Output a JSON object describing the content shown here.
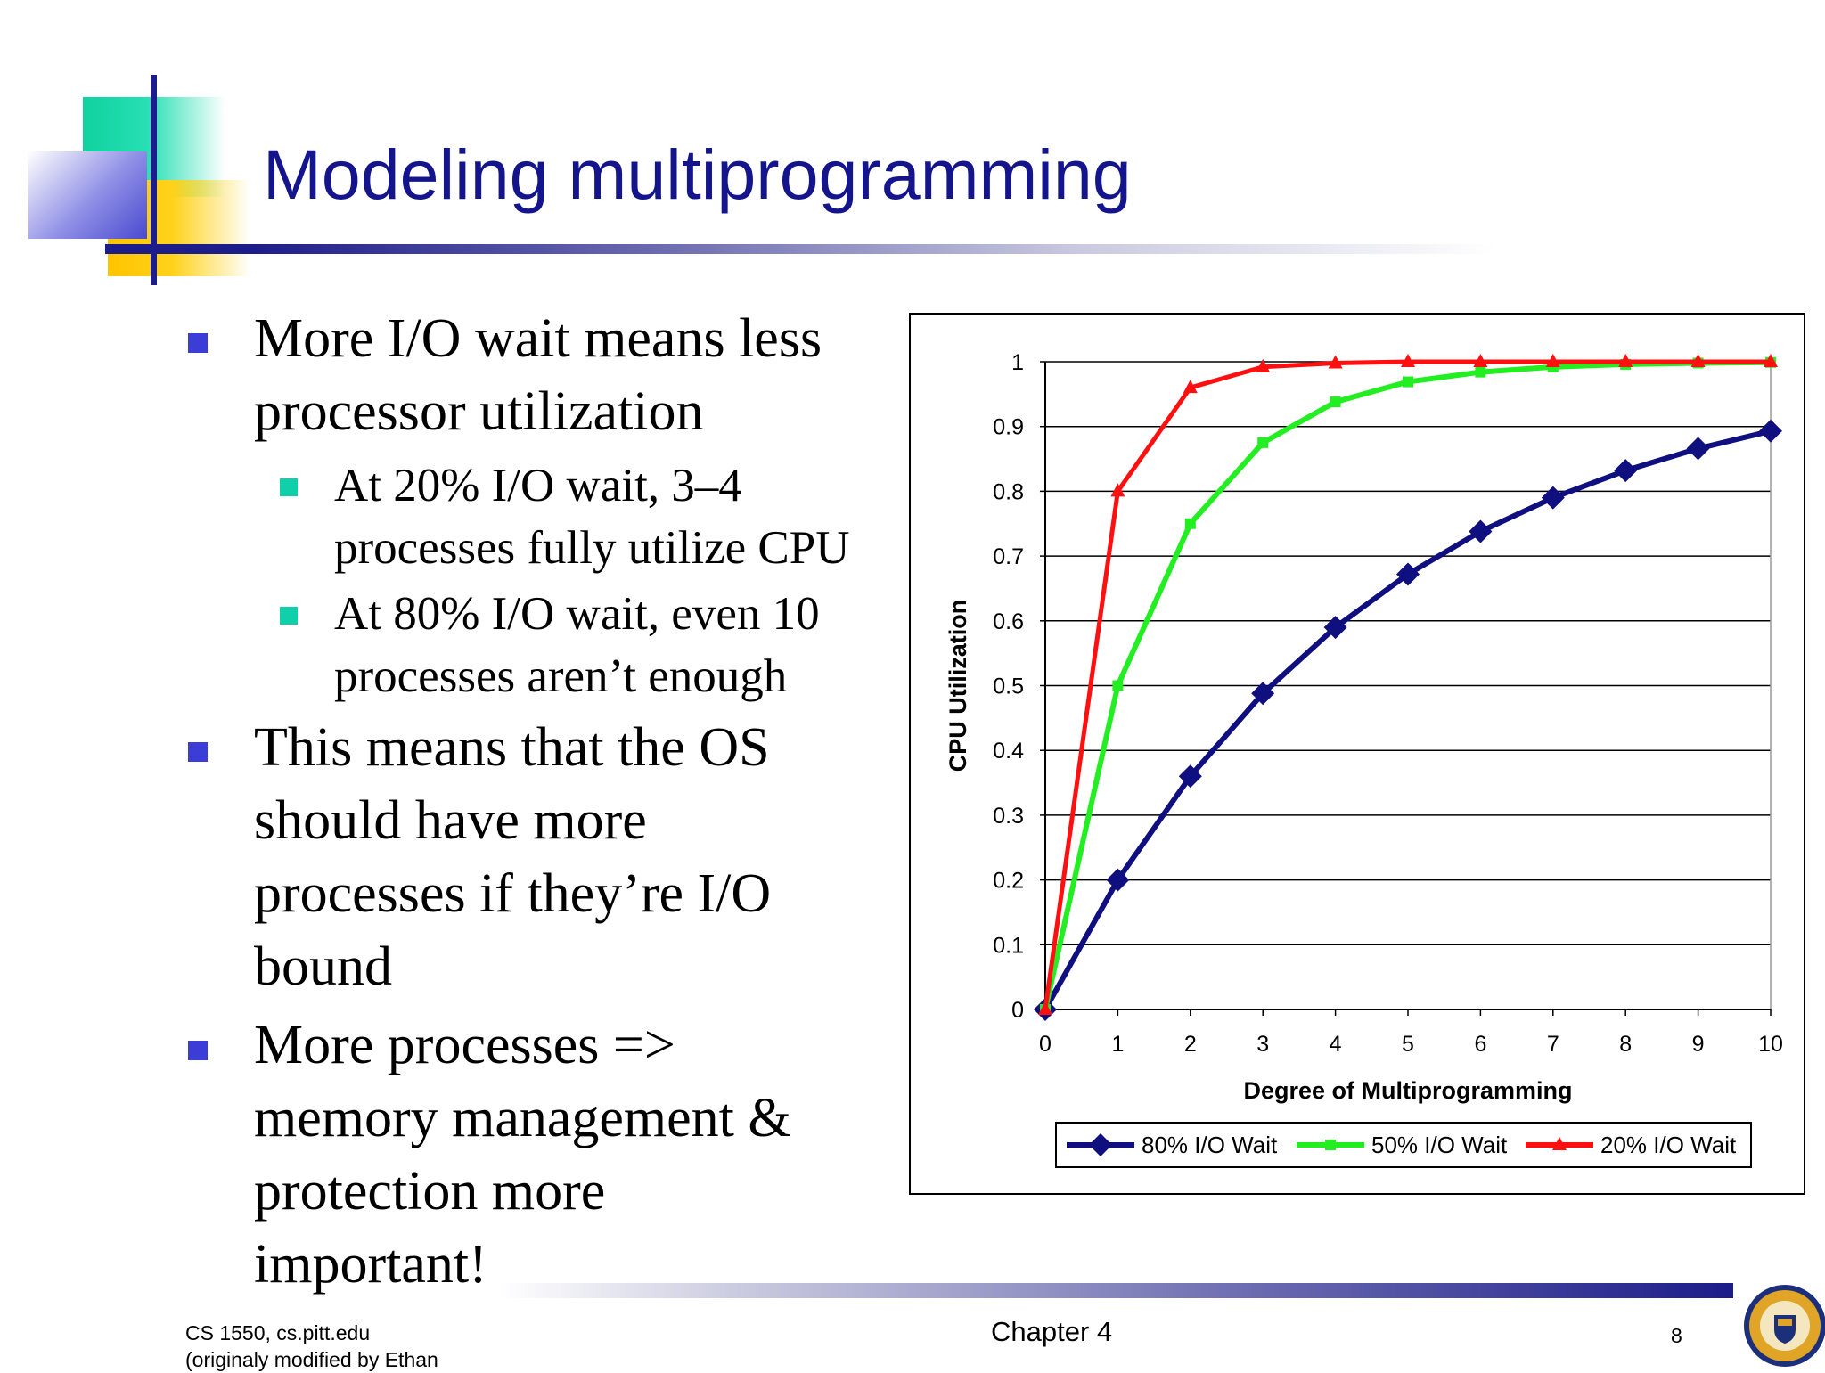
{
  "slide": {
    "title": "Modeling multiprogramming",
    "bullets": [
      {
        "lines": [
          "More I/O wait means less",
          "processor utilization"
        ]
      },
      {
        "lines": [
          "This means that the OS",
          "should have more",
          "processes if they’re I/O",
          "bound"
        ]
      },
      {
        "lines": [
          "More processes =>",
          "memory management &",
          "protection more",
          "important!"
        ]
      }
    ],
    "sub_bullets": [
      {
        "lines": [
          "At 20% I/O wait, 3–4",
          "processes fully utilize CPU"
        ]
      },
      {
        "lines": [
          "At 80% I/O wait, even 10",
          "processes aren’t enough"
        ]
      }
    ]
  },
  "footer": {
    "left_line1": "CS 1550, cs.pitt.edu",
    "left_line2": "(originaly modified by Ethan",
    "center": "Chapter 4",
    "page": "8"
  },
  "colors": {
    "title": "#14148c",
    "bullet_level1": "#3c3cd6",
    "bullet_level2": "#0fd0a8",
    "series_80": "#0f0f80",
    "series_50": "#22ee22",
    "series_20": "#ff1010"
  },
  "chart_data": {
    "type": "line",
    "xlabel": "Degree of Multiprogramming",
    "ylabel": "CPU Utilization",
    "x": [
      0,
      1,
      2,
      3,
      4,
      5,
      6,
      7,
      8,
      9,
      10
    ],
    "xlim": [
      0,
      10
    ],
    "ylim": [
      0,
      1
    ],
    "y_ticks": [
      "0",
      "0.1",
      "0.2",
      "0.3",
      "0.4",
      "0.5",
      "0.6",
      "0.7",
      "0.8",
      "0.9",
      "1"
    ],
    "x_ticks": [
      "0",
      "1",
      "2",
      "3",
      "4",
      "5",
      "6",
      "7",
      "8",
      "9",
      "10"
    ],
    "grid": true,
    "legend_position": "bottom",
    "series": [
      {
        "name": "80% I/O Wait",
        "marker": "diamond",
        "values": [
          0,
          0.2,
          0.36,
          0.488,
          0.59,
          0.672,
          0.738,
          0.79,
          0.832,
          0.866,
          0.893
        ]
      },
      {
        "name": "50% I/O Wait",
        "marker": "square",
        "values": [
          0,
          0.5,
          0.75,
          0.875,
          0.938,
          0.969,
          0.984,
          0.992,
          0.996,
          0.998,
          0.999
        ]
      },
      {
        "name": "20% I/O Wait",
        "marker": "triangle",
        "values": [
          0,
          0.8,
          0.96,
          0.992,
          0.998,
          1,
          1,
          1,
          1,
          1,
          1
        ]
      }
    ]
  }
}
